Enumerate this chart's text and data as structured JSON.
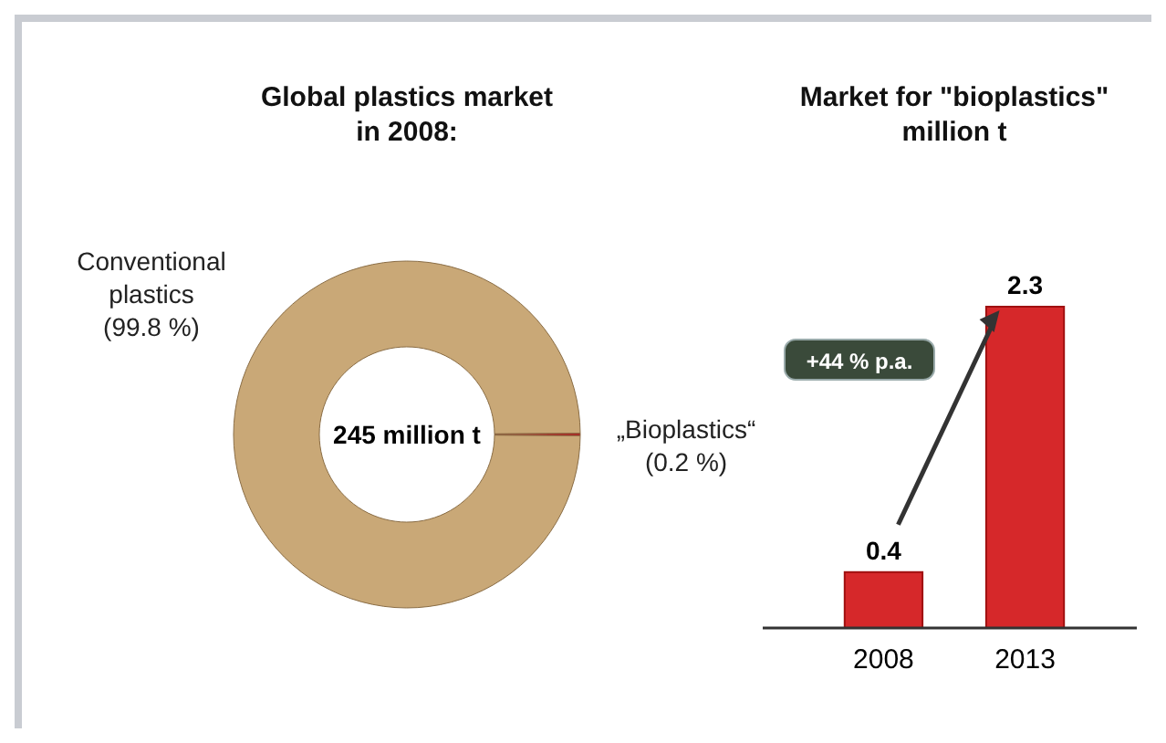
{
  "chart_data": [
    {
      "type": "donut",
      "title": "Global plastics market in 2008:",
      "categories": [
        "Conventional plastics",
        "„Bioplastics“"
      ],
      "values": [
        99.8,
        0.2
      ],
      "colors": [
        "#c9a877",
        "#b3121a"
      ],
      "value_labels": [
        "(99.8 %)",
        "(0.2 %)"
      ],
      "annotations": [
        "245 million t"
      ]
    },
    {
      "type": "bar",
      "title": "Market for \"bioplastics\" million t",
      "categories": [
        "2008",
        "2013"
      ],
      "values": [
        0.4,
        2.3
      ],
      "color": "#d6282a",
      "data_labels": true,
      "annotations": [
        "+44 % p.a."
      ]
    }
  ]
}
